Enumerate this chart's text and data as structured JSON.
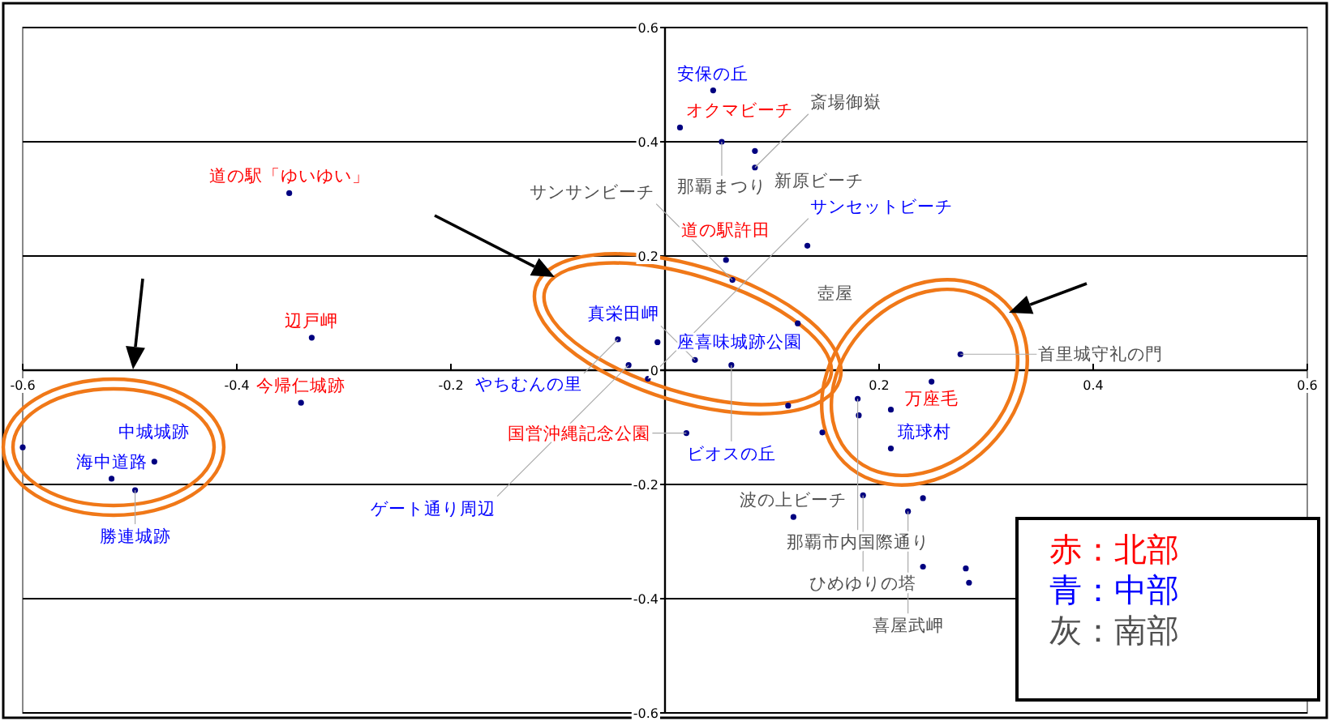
{
  "chart_data": {
    "type": "scatter",
    "xlim": [
      -0.6,
      0.6
    ],
    "ylim": [
      -0.6,
      0.6
    ],
    "xticks": [
      -0.6,
      -0.4,
      -0.2,
      0.2,
      0.4,
      0.6
    ],
    "yticks": [
      -0.6,
      -0.4,
      -0.2,
      0,
      0.2,
      0.4,
      0.6
    ],
    "grid": "y",
    "marker": "circle",
    "series": [
      {
        "color": "#000080",
        "x": [
          -0.351,
          -0.33,
          -0.34,
          -0.6,
          0.014,
          0.133,
          0.057,
          0.02,
          0.249,
          0.115,
          0.147,
          0.211,
          0.241,
          0.241
        ],
        "values": [
          0.31,
          0.057,
          -0.057,
          -0.135,
          0.425,
          0.218,
          0.193,
          -0.11,
          -0.02,
          -0.062,
          -0.109,
          -0.069,
          -0.224,
          -0.344
        ]
      },
      {
        "color": "#000080",
        "x": [
          -0.517,
          -0.495,
          -0.477,
          0.045,
          -0.044,
          -0.007,
          -0.034,
          -0.016,
          0.028,
          0.062,
          0.211,
          0.281
        ],
        "values": [
          -0.19,
          -0.21,
          -0.16,
          0.49,
          0.054,
          0.049,
          0.009,
          -0.015,
          0.018,
          0.009,
          -0.137,
          -0.347
        ]
      },
      {
        "color": "#000080",
        "x": [
          0.053,
          0.084,
          0.084,
          0.063,
          0.124,
          0.12,
          0.276,
          0.18,
          0.181,
          0.185,
          0.227,
          0.284
        ],
        "values": [
          0.4,
          0.384,
          0.355,
          0.158,
          0.082,
          -0.257,
          0.028,
          -0.05,
          -0.079,
          -0.219,
          -0.247,
          -0.372
        ]
      }
    ],
    "annotations": [
      {
        "text": "道の駅「ゆいゆい」",
        "x": -0.351,
        "y": 0.31
      },
      {
        "text": "辺戸岬",
        "x": -0.33,
        "y": 0.057
      },
      {
        "text": "今帰仁城跡",
        "x": -0.34,
        "y": -0.057
      },
      {
        "text": "オクマビーチ",
        "x": 0.014,
        "y": 0.425
      },
      {
        "text": "道の駅許田",
        "x": 0.057,
        "y": 0.193
      },
      {
        "text": "国営沖縄記念公園",
        "x": 0.02,
        "y": -0.11
      },
      {
        "text": "万座毛",
        "x": 0.249,
        "y": -0.02
      },
      {
        "text": "海中道路",
        "x": -0.517,
        "y": -0.19
      },
      {
        "text": "勝連城跡",
        "x": -0.495,
        "y": -0.21
      },
      {
        "text": "中城城跡",
        "x": -0.477,
        "y": -0.16
      },
      {
        "text": "安保の丘",
        "x": 0.045,
        "y": 0.49
      },
      {
        "text": "やちむんの里",
        "x": -0.044,
        "y": 0.054
      },
      {
        "text": "座喜味城跡公園",
        "x": -0.007,
        "y": 0.049
      },
      {
        "text": "ゲート通り周辺",
        "x": -0.034,
        "y": 0.009
      },
      {
        "text": "サンセットビーチ",
        "x": -0.016,
        "y": -0.015
      },
      {
        "text": "真栄田岬",
        "x": 0.028,
        "y": 0.018
      },
      {
        "text": "ビオスの丘",
        "x": 0.062,
        "y": 0.009
      },
      {
        "text": "琉球村",
        "x": 0.211,
        "y": -0.137
      },
      {
        "text": "那覇まつり",
        "x": 0.053,
        "y": 0.4
      },
      {
        "text": "新原ビーチ",
        "x": 0.084,
        "y": 0.384
      },
      {
        "text": "斎場御嶽",
        "x": 0.084,
        "y": 0.355
      },
      {
        "text": "サンサンビーチ",
        "x": 0.063,
        "y": 0.158
      },
      {
        "text": "壺屋",
        "x": 0.124,
        "y": 0.082
      },
      {
        "text": "波の上ビーチ",
        "x": 0.12,
        "y": -0.257
      },
      {
        "text": "首里城守礼の門",
        "x": 0.276,
        "y": 0.028
      },
      {
        "text": "那覇市内国際通り",
        "x": 0.18,
        "y": -0.05
      },
      {
        "text": "ひめゆりの塔",
        "x": 0.185,
        "y": -0.219
      },
      {
        "text": "喜屋武岬",
        "x": 0.227,
        "y": -0.247
      },
      "赤：北部",
      "青：中部",
      "灰：南部"
    ]
  }
}
